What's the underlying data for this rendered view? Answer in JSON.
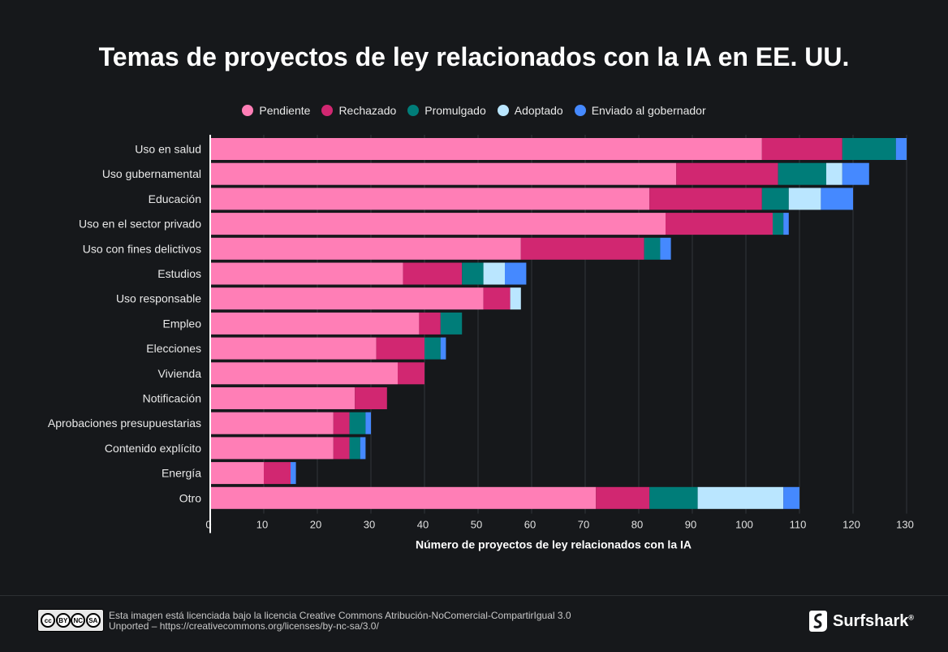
{
  "title": "Temas de proyectos de ley relacionados con la IA en EE. UU.",
  "legend": [
    {
      "name": "Pendiente",
      "color": "#ff7eb6"
    },
    {
      "name": "Rechazado",
      "color": "#d12771"
    },
    {
      "name": "Promulgado",
      "color": "#007d79"
    },
    {
      "name": "Adoptado",
      "color": "#bae6ff"
    },
    {
      "name": "Enviado al gobernador",
      "color": "#4589ff"
    }
  ],
  "chart_data": {
    "type": "bar",
    "orientation": "horizontal",
    "stacked": true,
    "title": "Temas de proyectos de ley relacionados con la IA en EE. UU.",
    "xlabel": "Número de proyectos de ley relacionados con la IA",
    "ylabel": "",
    "xlim": [
      0,
      130
    ],
    "xticks": [
      0,
      10,
      20,
      30,
      40,
      50,
      60,
      70,
      80,
      90,
      100,
      110,
      120,
      130
    ],
    "grid": true,
    "legend_position": "top",
    "categories": [
      "Uso en salud",
      "Uso gubernamental",
      "Educación",
      "Uso en el sector privado",
      "Uso con fines delictivos",
      "Estudios",
      "Uso responsable",
      "Empleo",
      "Elecciones",
      "Vivienda",
      "Notificación",
      "Aprobaciones presupuestarias",
      "Contenido explícito",
      "Energía",
      "Otro"
    ],
    "series": [
      {
        "name": "Pendiente",
        "color": "#ff7eb6",
        "values": [
          103,
          87,
          82,
          85,
          58,
          36,
          51,
          39,
          31,
          35,
          27,
          23,
          23,
          10,
          72
        ]
      },
      {
        "name": "Rechazado",
        "color": "#d12771",
        "values": [
          15,
          19,
          21,
          20,
          23,
          11,
          5,
          4,
          9,
          5,
          6,
          3,
          3,
          5,
          10
        ]
      },
      {
        "name": "Promulgado",
        "color": "#007d79",
        "values": [
          10,
          9,
          5,
          2,
          3,
          4,
          0,
          4,
          3,
          0,
          0,
          3,
          2,
          0,
          9
        ]
      },
      {
        "name": "Adoptado",
        "color": "#bae6ff",
        "values": [
          0,
          3,
          6,
          0,
          0,
          4,
          2,
          0,
          0,
          0,
          0,
          0,
          0,
          0,
          16
        ]
      },
      {
        "name": "Enviado al gobernador",
        "color": "#4589ff",
        "values": [
          2,
          5,
          6,
          1,
          2,
          4,
          0,
          0,
          1,
          0,
          0,
          1,
          1,
          1,
          3
        ]
      }
    ]
  },
  "footer": {
    "license_line1": "Esta imagen está licenciada bajo la licencia Creative Commons Atribución-NoComercial-CompartirIgual 3.0",
    "license_line2": "Unported – https://creativecommons.org/licenses/by-nc-sa/3.0/",
    "cc_labels": [
      "BY",
      "NC",
      "SA"
    ],
    "brand": "Surfshark",
    "brand_mark": "®"
  }
}
